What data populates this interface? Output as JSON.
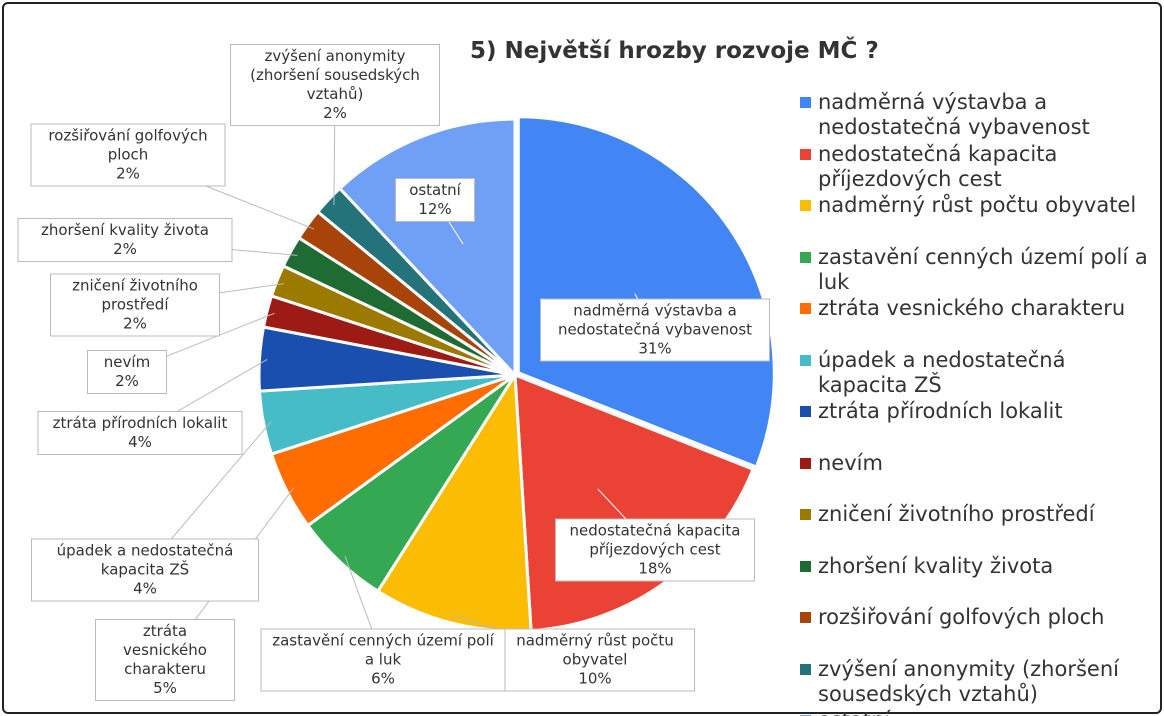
{
  "chart_data": {
    "type": "pie",
    "title": "5) Největší hrozby rozvoje MČ ?",
    "categories": [
      "nadměrná výstavba a nedostatečná vybavenost",
      "nedostatečná kapacita příjezdových cest",
      "nadměrný růst počtu obyvatel",
      "zastavění cenných území polí a luk",
      "ztráta vesnického charakteru",
      "úpadek a nedostatečná kapacita ZŠ",
      "ztráta přírodních lokalit",
      "nevím",
      "zničení životního prostředí",
      "zhoršení kvality života",
      "rozšiřování golfových ploch",
      "zvýšení anonymity (zhoršení sousedských vztahů)",
      "ostatní"
    ],
    "values": [
      31,
      18,
      10,
      6,
      5,
      4,
      4,
      2,
      2,
      2,
      2,
      2,
      12
    ],
    "value_labels": [
      "31%",
      "18%",
      "10%",
      "6%",
      "5%",
      "4%",
      "4%",
      "2%",
      "2%",
      "2%",
      "2%",
      "2%",
      "12%"
    ],
    "colors": [
      "#4285f4",
      "#ea4335",
      "#fbbc04",
      "#34a853",
      "#ff6d01",
      "#46bdc6",
      "#1a4fb0",
      "#9e1a14",
      "#9c7a00",
      "#1e6b33",
      "#a8430a",
      "#24727a",
      "#6fa0f5"
    ],
    "legend": "right"
  }
}
